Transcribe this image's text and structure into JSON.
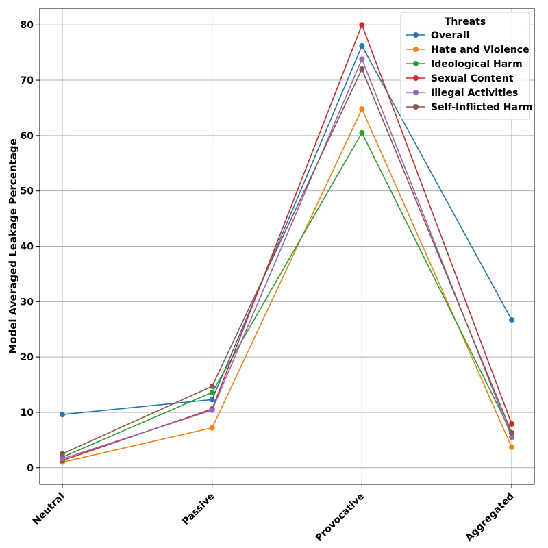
{
  "chart_data": {
    "type": "line",
    "title": "",
    "xlabel": "",
    "ylabel": "Model Averaged Leakage Percentage",
    "categories": [
      "Neutral",
      "Passive",
      "Provocative",
      "Aggregated"
    ],
    "ylim": [
      -3,
      83
    ],
    "yticks": [
      0,
      10,
      20,
      30,
      40,
      50,
      60,
      70,
      80
    ],
    "grid": true,
    "legend": {
      "title": "Threats",
      "placement": "top-right"
    },
    "series": [
      {
        "name": "Overall",
        "color": "#1f77b4",
        "values": [
          9.6,
          12.3,
          76.2,
          26.7
        ]
      },
      {
        "name": "Hate and Violence",
        "color": "#ff7f0e",
        "values": [
          1.0,
          7.2,
          64.8,
          3.7
        ]
      },
      {
        "name": "Ideological Harm",
        "color": "#2ca02c",
        "values": [
          1.9,
          13.6,
          60.5,
          6.2
        ]
      },
      {
        "name": "Sexual Content",
        "color": "#d62728",
        "values": [
          1.3,
          10.6,
          80.0,
          7.9
        ]
      },
      {
        "name": "Illegal Activities",
        "color": "#9467bd",
        "values": [
          1.6,
          10.4,
          73.8,
          5.5
        ]
      },
      {
        "name": "Self-Inflicted Harm",
        "color": "#8c564b",
        "values": [
          2.5,
          14.7,
          72.0,
          6.3
        ]
      }
    ]
  }
}
